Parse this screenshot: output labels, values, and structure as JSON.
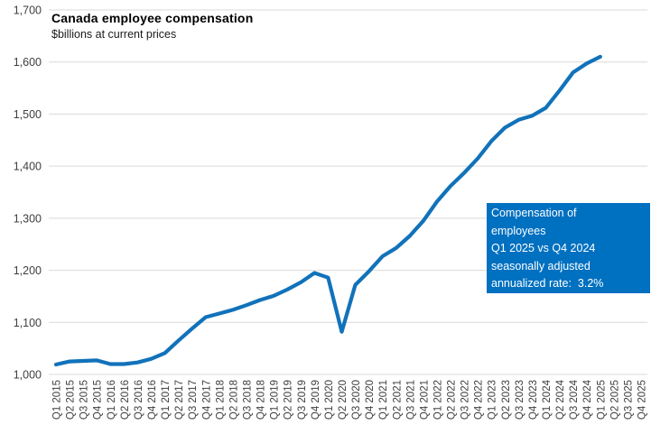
{
  "chart_data": {
    "type": "line",
    "title": "Canada employee compensation",
    "subtitle": "$billions at current prices",
    "categories": [
      "Q1 2015",
      "Q2 2015",
      "Q3 2015",
      "Q4 2015",
      "Q1 2016",
      "Q2 2016",
      "Q3 2016",
      "Q4 2016",
      "Q1 2017",
      "Q2 2017",
      "Q3 2017",
      "Q4 2017",
      "Q1 2018",
      "Q2 2018",
      "Q3 2018",
      "Q4 2018",
      "Q1 2019",
      "Q2 2019",
      "Q3 2019",
      "Q4 2019",
      "Q1 2020",
      "Q2 2020",
      "Q3 2020",
      "Q4 2020",
      "Q1 2021",
      "Q2 2021",
      "Q3 2021",
      "Q4 2021",
      "Q1 2022",
      "Q2 2022",
      "Q3 2022",
      "Q4 2022",
      "Q1 2023",
      "Q2 2023",
      "Q3 2023",
      "Q4 2023",
      "Q1 2024",
      "Q2 2024",
      "Q3 2024",
      "Q4 2024",
      "Q1 2025",
      "Q2 2025",
      "Q3 2025",
      "Q4 2025"
    ],
    "series": [
      {
        "name": "Compensation of employees",
        "values": [
          1019,
          1025,
          1026,
          1027,
          1020,
          1020,
          1023,
          1030,
          1041,
          1065,
          1088,
          1110,
          1117,
          1124,
          1133,
          1143,
          1151,
          1163,
          1177,
          1195,
          1186,
          1082,
          1172,
          1198,
          1227,
          1243,
          1266,
          1295,
          1332,
          1362,
          1387,
          1415,
          1448,
          1474,
          1489,
          1497,
          1512,
          1545,
          1580,
          1597,
          1610
        ]
      }
    ],
    "ylim": [
      1000,
      1700
    ],
    "y_ticks": [
      {
        "value": 1000,
        "label": "1,000"
      },
      {
        "value": 1100,
        "label": "1,100"
      },
      {
        "value": 1200,
        "label": "1,200"
      },
      {
        "value": 1300,
        "label": "1,300"
      },
      {
        "value": 1400,
        "label": "1,400"
      },
      {
        "value": 1500,
        "label": "1,500"
      },
      {
        "value": 1600,
        "label": "1,600"
      },
      {
        "value": 1700,
        "label": "1,700"
      }
    ],
    "grid": true,
    "legend": "none",
    "line_color": "#1172BA",
    "gridline_color": "#D9D9D9",
    "axis_text_color": "#3F3F3F"
  },
  "annotation": {
    "lines": [
      "Compensation of",
      "employees",
      "Q1 2025 vs Q4 2024",
      "seasonally adjusted",
      "annualized rate:  3.2%"
    ],
    "bg_color": "#0070C0",
    "text_color": "#FFFFFF"
  }
}
